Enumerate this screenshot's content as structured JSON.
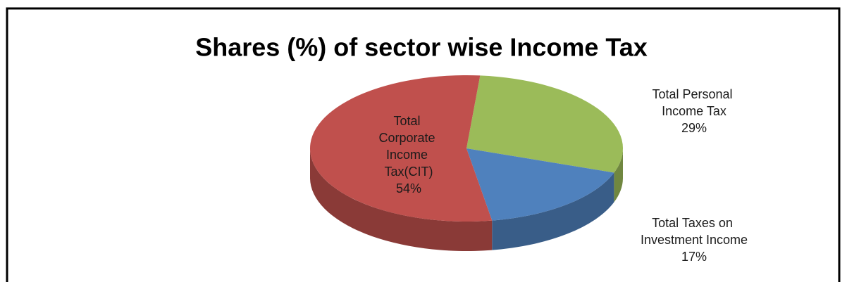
{
  "chart_data": {
    "type": "pie",
    "title": "Shares (%) of sector wise Income Tax",
    "categories": [
      "Total Personal Income Tax",
      "Total Taxes on Investment Income",
      "Total Corporate Income Tax(CIT)"
    ],
    "values": [
      29,
      17,
      54
    ],
    "value_labels": [
      "29%",
      "17%",
      "54%"
    ],
    "colors": [
      "#9bbb59",
      "#4f81bd",
      "#c0504d"
    ]
  }
}
